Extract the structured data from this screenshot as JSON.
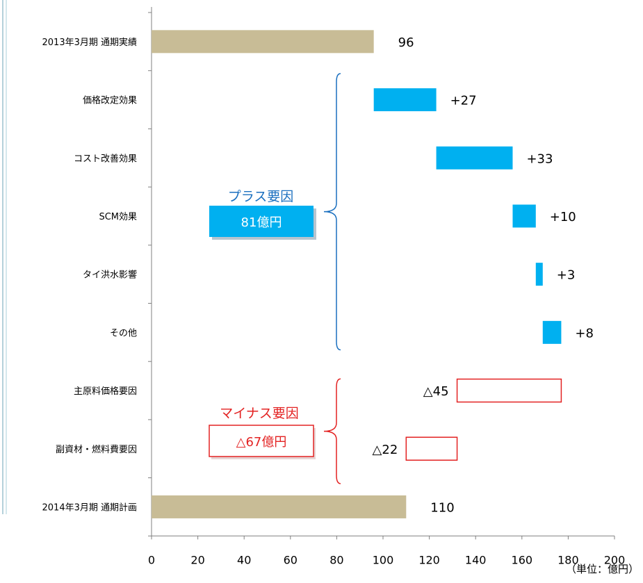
{
  "chart_data": {
    "type": "bar",
    "orientation": "horizontal",
    "style": "waterfall",
    "categories": [
      "2013年3月期 通期実績",
      "価格改定効果",
      "コスト改善効果",
      "SCM効果",
      "タイ洪水影響",
      "その他",
      "主原料価格要因",
      "副資材・燃料費要因",
      "2014年3月期 通期計画"
    ],
    "bars": [
      {
        "start": 0,
        "end": 96,
        "kind": "total",
        "label": "96"
      },
      {
        "start": 96,
        "end": 123,
        "kind": "increase",
        "label": "+27"
      },
      {
        "start": 123,
        "end": 156,
        "kind": "increase",
        "label": "+33"
      },
      {
        "start": 156,
        "end": 166,
        "kind": "increase",
        "label": "+10"
      },
      {
        "start": 166,
        "end": 169,
        "kind": "increase",
        "label": "+3"
      },
      {
        "start": 169,
        "end": 177,
        "kind": "increase",
        "label": "+8"
      },
      {
        "start": 132,
        "end": 177,
        "kind": "decrease",
        "label": "△45"
      },
      {
        "start": 110,
        "end": 132,
        "kind": "decrease",
        "label": "△22"
      },
      {
        "start": 0,
        "end": 110,
        "kind": "total",
        "label": "110"
      }
    ],
    "xlim": [
      0,
      200
    ],
    "xticks": [
      "0",
      "20",
      "40",
      "60",
      "80",
      "100",
      "120",
      "140",
      "160",
      "180",
      "200"
    ],
    "unit_label": "（単位：億円）",
    "groups": [
      {
        "title": "プラス要因",
        "value": "81億円",
        "from": 1,
        "to": 5
      },
      {
        "title": "マイナス要因",
        "value": "△67億円",
        "from": 6,
        "to": 7
      }
    ],
    "colors": {
      "total": "#c8bc96",
      "increase": "#00b0f0",
      "decrease_border": "#e32222",
      "plus_text": "#1a6fbf",
      "minus_text": "#e32222",
      "brace_plus": "#1a6fbf",
      "brace_minus": "#e32222"
    }
  }
}
